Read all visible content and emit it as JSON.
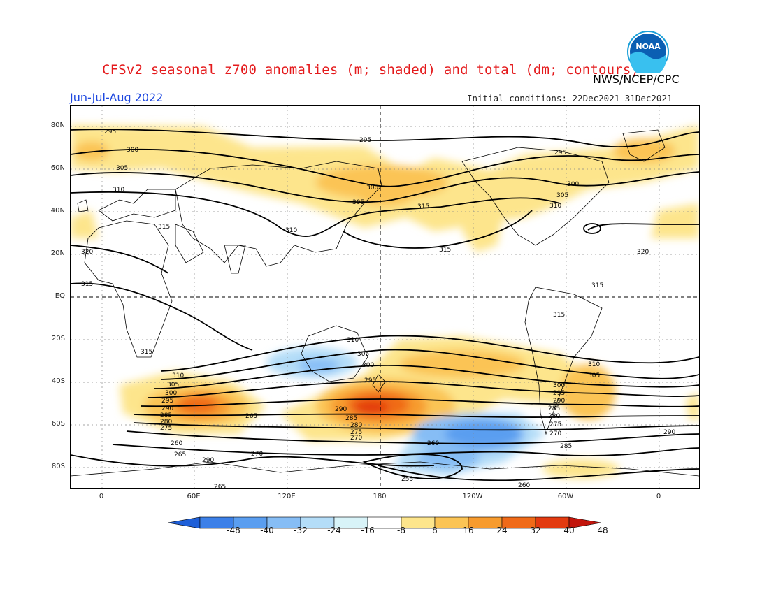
{
  "header": {
    "title": "CFSv2 seasonal z700 anomalies (m; shaded) and total (dm; contours)",
    "agency": "NWS/NCEP/CPC",
    "season": "Jun-Jul-Aug 2022",
    "initial_conditions": "Initial conditions: 22Dec2021-31Dec2021",
    "logo_text": "NOAA"
  },
  "axes": {
    "lat_labels": [
      "80N",
      "60N",
      "40N",
      "20N",
      "EQ",
      "20S",
      "40S",
      "60S",
      "80S"
    ],
    "lon_labels": [
      "0",
      "60E",
      "120E",
      "180",
      "120W",
      "60W",
      "0"
    ]
  },
  "colorbar": {
    "labels": [
      "-48",
      "-40",
      "-32",
      "-24",
      "-16",
      "-8",
      "8",
      "16",
      "24",
      "32",
      "40",
      "48"
    ],
    "colors": [
      "#1e5fd8",
      "#3c80e8",
      "#5a9ef0",
      "#86bdf5",
      "#b4ddf8",
      "#d8f3f8",
      "#ffffff",
      "#fde58c",
      "#fbc455",
      "#f79b2e",
      "#f06a18",
      "#e33a10",
      "#c2150c"
    ]
  },
  "contour_labels": [
    "295",
    "300",
    "305",
    "310",
    "315",
    "320",
    "290",
    "285",
    "280",
    "275",
    "270",
    "265",
    "260",
    "255"
  ]
}
